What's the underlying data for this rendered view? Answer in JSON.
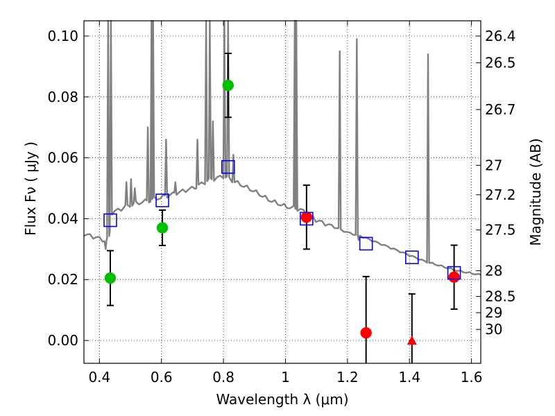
{
  "chart_data": {
    "type": "scatter",
    "xlabel": "Wavelength  λ (μm)",
    "ylabel_left": "Flux  Fν  ( μJy )",
    "ylabel_right": "Magnitude (AB)",
    "xlim": [
      0.35,
      1.63
    ],
    "ylim": [
      -0.0075,
      0.105
    ],
    "grid": true,
    "x_ticks": [
      {
        "value": 0.4,
        "label": "0.4"
      },
      {
        "value": 0.6,
        "label": "0.6"
      },
      {
        "value": 0.8,
        "label": "0.8"
      },
      {
        "value": 1.0,
        "label": "1"
      },
      {
        "value": 1.2,
        "label": "1.2"
      },
      {
        "value": 1.4,
        "label": "1.4"
      },
      {
        "value": 1.6,
        "label": "1.6"
      }
    ],
    "y_ticks": [
      {
        "value": 0.0,
        "label": "0.00"
      },
      {
        "value": 0.02,
        "label": "0.02"
      },
      {
        "value": 0.04,
        "label": "0.04"
      },
      {
        "value": 0.06,
        "label": "0.06"
      },
      {
        "value": 0.08,
        "label": "0.08"
      },
      {
        "value": 0.1,
        "label": "0.10"
      }
    ],
    "mag_ticks": [
      {
        "value": 26.4,
        "label": "26.4"
      },
      {
        "value": 26.5,
        "label": "26.5"
      },
      {
        "value": 26.7,
        "label": "26.7"
      },
      {
        "value": 27.0,
        "label": "27"
      },
      {
        "value": 27.2,
        "label": "27.2"
      },
      {
        "value": 27.5,
        "label": "27.5"
      },
      {
        "value": 28.0,
        "label": "28"
      },
      {
        "value": 28.5,
        "label": "28.5"
      },
      {
        "value": 29.0,
        "label": "29"
      },
      {
        "value": 30.0,
        "label": "30"
      }
    ],
    "model_spectrum": {
      "color": "#808080",
      "continuum": [
        [
          0.35,
          0.035
        ],
        [
          0.4,
          0.0335
        ],
        [
          0.43,
          0.0325
        ],
        [
          0.44,
          0.042
        ],
        [
          0.5,
          0.0445
        ],
        [
          0.6,
          0.047
        ],
        [
          0.7,
          0.05
        ],
        [
          0.75,
          0.0525
        ],
        [
          0.8,
          0.054
        ],
        [
          0.84,
          0.052
        ],
        [
          0.9,
          0.049
        ],
        [
          0.95,
          0.046
        ],
        [
          1.0,
          0.044
        ],
        [
          1.05,
          0.043
        ],
        [
          1.1,
          0.0395
        ],
        [
          1.15,
          0.0375
        ],
        [
          1.2,
          0.0355
        ],
        [
          1.25,
          0.034
        ],
        [
          1.3,
          0.032
        ],
        [
          1.35,
          0.03
        ],
        [
          1.4,
          0.028
        ],
        [
          1.45,
          0.026
        ],
        [
          1.5,
          0.0245
        ],
        [
          1.55,
          0.023
        ],
        [
          1.63,
          0.0215
        ]
      ],
      "emission_lines": [
        [
          0.428,
          0.105
        ],
        [
          0.437,
          0.105
        ],
        [
          0.487,
          0.052
        ],
        [
          0.502,
          0.053
        ],
        [
          0.514,
          0.05
        ],
        [
          0.556,
          0.07
        ],
        [
          0.568,
          0.105
        ],
        [
          0.573,
          0.105
        ],
        [
          0.615,
          0.066
        ],
        [
          0.645,
          0.052
        ],
        [
          0.716,
          0.066
        ],
        [
          0.744,
          0.105
        ],
        [
          0.756,
          0.105
        ],
        [
          0.766,
          0.072
        ],
        [
          0.803,
          0.105
        ],
        [
          0.815,
          0.105
        ],
        [
          0.832,
          0.061
        ],
        [
          1.03,
          0.105
        ],
        [
          1.035,
          0.105
        ],
        [
          1.175,
          0.095
        ],
        [
          1.23,
          0.099
        ],
        [
          1.46,
          0.094
        ]
      ],
      "absorption_dips": [
        [
          0.42,
          0.03
        ],
        [
          1.236,
          0.033
        ]
      ]
    },
    "series": [
      {
        "marker": "circle",
        "color": "#00c000",
        "points": [
          {
            "x": 0.435,
            "y": 0.0205,
            "err": 0.009
          },
          {
            "x": 0.603,
            "y": 0.037,
            "err": 0.0058
          },
          {
            "x": 0.815,
            "y": 0.0838,
            "err": 0.0105
          }
        ]
      },
      {
        "marker": "circle",
        "color": "#ff0000",
        "points": [
          {
            "x": 1.068,
            "y": 0.0405,
            "err": 0.0105
          },
          {
            "x": 1.26,
            "y": 0.0025,
            "err": 0.0185
          },
          {
            "x": 1.544,
            "y": 0.0208,
            "err": 0.0105
          }
        ]
      },
      {
        "marker": "triangle",
        "color": "#ff0000",
        "points": [
          {
            "x": 1.408,
            "y": 0.0,
            "err_up": 0.0153
          }
        ]
      },
      {
        "marker": "open-square",
        "color": "#0000ff",
        "points": [
          {
            "x": 0.435,
            "y": 0.0395
          },
          {
            "x": 0.603,
            "y": 0.046
          },
          {
            "x": 0.815,
            "y": 0.057
          },
          {
            "x": 1.068,
            "y": 0.04
          },
          {
            "x": 1.26,
            "y": 0.0318
          },
          {
            "x": 1.408,
            "y": 0.0273
          },
          {
            "x": 1.544,
            "y": 0.0222
          }
        ]
      }
    ]
  }
}
